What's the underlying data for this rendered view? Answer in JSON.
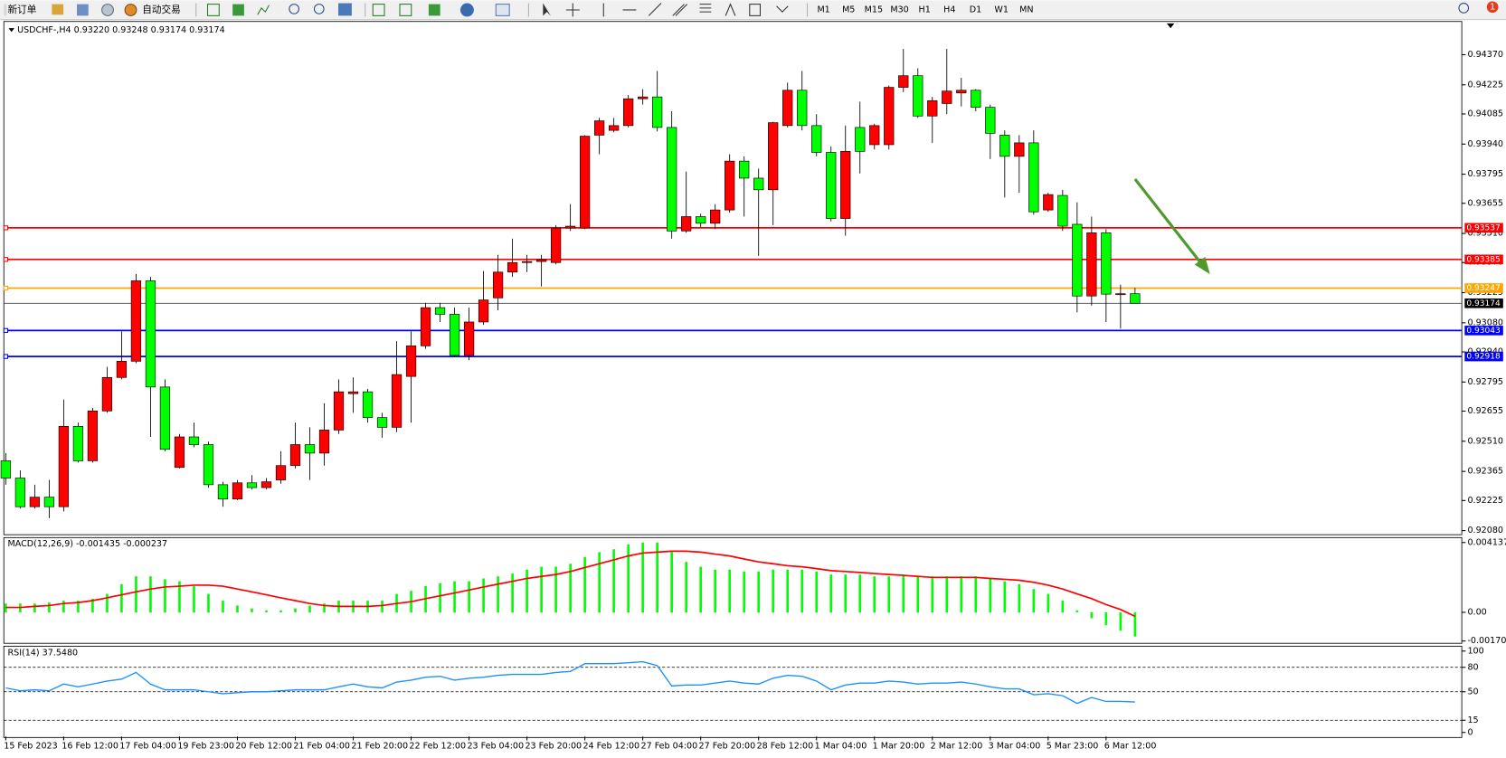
{
  "toolbar": {
    "new_order": "新订单",
    "auto_trading": "自动交易",
    "timeframes": [
      "M1",
      "M5",
      "M15",
      "M30",
      "H1",
      "H4",
      "D1",
      "W1",
      "MN"
    ],
    "notifications": 1
  },
  "chart_data": [
    {
      "type": "candlestick",
      "title": "USDCHF-,H4 0.93220 0.93248 0.93174 0.93174",
      "categories": [
        "15 Feb 2023",
        null,
        null,
        null,
        "16 Feb 12:00",
        null,
        null,
        null,
        "17 Feb 04:00",
        null,
        null,
        null,
        "19 Feb 23:00",
        null,
        null,
        null,
        "20 Feb 12:00",
        null,
        null,
        null,
        "21 Feb 04:00",
        null,
        null,
        null,
        "21 Feb 20:00",
        null,
        null,
        null,
        "22 Feb 12:00",
        null,
        null,
        null,
        "23 Feb 04:00",
        null,
        null,
        null,
        "23 Feb 20:00",
        null,
        null,
        null,
        "24 Feb 12:00",
        null,
        null,
        null,
        "27 Feb 04:00",
        null,
        null,
        null,
        "27 Feb 20:00",
        null,
        null,
        null,
        "28 Feb 12:00",
        null,
        null,
        null,
        "1 Mar 04:00",
        null,
        null,
        null,
        "1 Mar 20:00",
        null,
        null,
        null,
        "2 Mar 12:00",
        null,
        null,
        null,
        "3 Mar 04:00",
        null,
        null,
        null,
        "5 Mar 23:00",
        null,
        null,
        null,
        "6 Mar 12:00",
        null,
        null
      ],
      "open": [
        0.92416,
        0.92333,
        0.92195,
        0.92241,
        0.92195,
        0.92582,
        0.92416,
        0.92656,
        0.92817,
        0.92895,
        0.93282,
        0.92771,
        0.92384,
        0.92531,
        0.92494,
        0.92301,
        0.92232,
        0.9231,
        0.92287,
        0.92324,
        0.92393,
        0.92494,
        0.92453,
        0.92564,
        0.92739,
        0.92748,
        0.92624,
        0.92577,
        0.92822,
        0.92969,
        0.93153,
        0.93121,
        0.92923,
        0.93084,
        0.932,
        0.93324,
        0.9337,
        0.93375,
        0.9337,
        0.93536,
        0.93536,
        0.93983,
        0.94006,
        0.94029,
        0.94158,
        0.94167,
        0.9402,
        0.93522,
        0.93591,
        0.93559,
        0.93623,
        0.93858,
        0.93776,
        0.9372,
        0.94029,
        0.94199,
        0.94029,
        0.939,
        0.93582,
        0.9402,
        0.93937,
        0.93937,
        0.94213,
        0.94269,
        0.94075,
        0.94135,
        0.94186,
        0.94199,
        0.94117,
        0.93983,
        0.93881,
        0.93946,
        0.93623,
        0.93693,
        0.93554,
        0.93209,
        0.93513,
        0.93218,
        0.9322
      ],
      "high": [
        0.92453,
        0.9237,
        0.92301,
        0.92324,
        0.92711,
        0.926,
        0.9267,
        0.92868,
        0.93038,
        0.93315,
        0.93301,
        0.92808,
        0.92545,
        0.926,
        0.92508,
        0.92315,
        0.92324,
        0.92347,
        0.92333,
        0.92462,
        0.926,
        0.92577,
        0.92693,
        0.92808,
        0.92817,
        0.92762,
        0.92647,
        0.92992,
        0.93038,
        0.93176,
        0.93176,
        0.93153,
        0.93153,
        0.93329,
        0.93407,
        0.93485,
        0.93407,
        0.93407,
        0.9355,
        0.93651,
        0.93983,
        0.94066,
        0.94066,
        0.94176,
        0.94204,
        0.94292,
        0.94098,
        0.93808,
        0.93605,
        0.93651,
        0.93891,
        0.93881,
        0.93822,
        0.94047,
        0.94236,
        0.94292,
        0.94084,
        0.93928,
        0.94029,
        0.94144,
        0.94038,
        0.94222,
        0.94398,
        0.94305,
        0.94167,
        0.94398,
        0.94259,
        0.94204,
        0.9413,
        0.94006,
        0.93983,
        0.94006,
        0.93706,
        0.9372,
        0.9366,
        0.93591,
        0.93531,
        0.93264,
        0.93248
      ],
      "low": [
        0.92301,
        0.92186,
        0.92186,
        0.9214,
        0.92172,
        0.92407,
        0.92407,
        0.92647,
        0.92808,
        0.92886,
        0.92531,
        0.92462,
        0.92379,
        0.92481,
        0.92287,
        0.92195,
        0.92227,
        0.92278,
        0.92278,
        0.92306,
        0.92379,
        0.92324,
        0.92393,
        0.92545,
        0.92647,
        0.926,
        0.92527,
        0.92554,
        0.926,
        0.92955,
        0.93084,
        0.92914,
        0.929,
        0.9307,
        0.9314,
        0.93301,
        0.93324,
        0.93255,
        0.93361,
        0.93522,
        0.93531,
        0.93891,
        0.93997,
        0.9402,
        0.9413,
        0.94001,
        0.93485,
        0.93513,
        0.9354,
        0.93531,
        0.9361,
        0.93591,
        0.93402,
        0.9355,
        0.9402,
        0.94006,
        0.93881,
        0.93568,
        0.93499,
        0.93799,
        0.93914,
        0.93914,
        0.9419,
        0.94066,
        0.93946,
        0.94084,
        0.94121,
        0.94098,
        0.93868,
        0.93683,
        0.93706,
        0.936,
        0.93614,
        0.93522,
        0.9313,
        0.93163,
        0.93084,
        0.93052,
        0.93174
      ],
      "close": [
        0.92333,
        0.92195,
        0.92241,
        0.92195,
        0.92582,
        0.92416,
        0.92656,
        0.92817,
        0.92895,
        0.93282,
        0.92771,
        0.92471,
        0.92531,
        0.92494,
        0.92301,
        0.92232,
        0.9231,
        0.92287,
        0.92315,
        0.92393,
        0.92494,
        0.92453,
        0.92564,
        0.92748,
        0.92748,
        0.92624,
        0.92577,
        0.92831,
        0.92969,
        0.93153,
        0.93121,
        0.92923,
        0.93084,
        0.9319,
        0.93324,
        0.9337,
        0.93375,
        0.93384,
        0.93536,
        0.93545,
        0.93978,
        0.94052,
        0.94029,
        0.94158,
        0.94167,
        0.9402,
        0.93522,
        0.93591,
        0.93559,
        0.93623,
        0.93858,
        0.93776,
        0.9372,
        0.94043,
        0.94199,
        0.94029,
        0.939,
        0.93582,
        0.93905,
        0.93905,
        0.94029,
        0.94213,
        0.94269,
        0.94075,
        0.94149,
        0.94195,
        0.94199,
        0.94117,
        0.93992,
        0.93881,
        0.93946,
        0.93614,
        0.93697,
        0.93545,
        0.93209,
        0.93513,
        0.93218,
        0.9322,
        0.93174
      ],
      "up_color": "#ff0000",
      "down_color": "#00ff00",
      "levels": [
        {
          "value": 0.93537,
          "color": "#ff0000"
        },
        {
          "value": 0.93385,
          "color": "#ff0000"
        },
        {
          "value": 0.93247,
          "color": "#ffa500"
        },
        {
          "value": 0.93043,
          "color": "#0000ff"
        },
        {
          "value": 0.92918,
          "color": "#0000ff"
        }
      ],
      "current_price": 0.93174,
      "ylim": [
        0.92065,
        0.9453
      ],
      "yticks": [
        {
          "value": 0.9437,
          "label": "0.94370"
        },
        0.94225,
        {
          "value": 0.94085,
          "label": "0.94085"
        },
        {
          "value": 0.9394,
          "label": "0.93940"
        },
        0.93795,
        0.93655,
        {
          "value": 0.9351,
          "label": "0.93510"
        },
        {
          "value": 0.9337,
          "label": "0.93370"
        },
        0.93225,
        {
          "value": 0.9308,
          "label": "0.93080"
        },
        {
          "value": 0.9294,
          "label": "0.92940"
        },
        0.92795,
        0.92655,
        {
          "value": 0.9251,
          "label": "0.92510"
        },
        0.92365,
        0.92225,
        {
          "value": 0.9208,
          "label": "0.92080"
        }
      ]
    },
    {
      "type": "macd",
      "title": "MACD(12,26,9) -0.001435 -0.000237",
      "histogram": [
        0.00052,
        0.00052,
        0.00052,
        0.00058,
        0.00069,
        0.00069,
        0.00081,
        0.00109,
        0.00167,
        0.00213,
        0.00213,
        0.00196,
        0.00184,
        0.00155,
        0.00109,
        0.00069,
        0.0004,
        0.00023,
        0.00012,
        0.00012,
        0.00023,
        0.0004,
        0.00052,
        0.00069,
        0.00069,
        0.00069,
        0.00069,
        0.00109,
        0.00127,
        0.00155,
        0.00173,
        0.00184,
        0.00184,
        0.00201,
        0.00213,
        0.0023,
        0.00253,
        0.0027,
        0.0027,
        0.00288,
        0.00328,
        0.00357,
        0.00374,
        0.00403,
        0.00414,
        0.00414,
        0.00357,
        0.00299,
        0.0027,
        0.00253,
        0.00253,
        0.00242,
        0.00242,
        0.00253,
        0.00253,
        0.00253,
        0.00242,
        0.00224,
        0.00224,
        0.00224,
        0.00213,
        0.00213,
        0.00224,
        0.00213,
        0.00213,
        0.00213,
        0.00213,
        0.00213,
        0.00201,
        0.00184,
        0.00167,
        0.00138,
        0.00109,
        0.00069,
        0.00012,
        -0.00035,
        -0.00075,
        -0.00109,
        -0.001435
      ],
      "histogram_color": "#00ff00",
      "signal": [
        0.00029,
        0.00029,
        0.00035,
        0.0004,
        0.00052,
        0.00058,
        0.00069,
        0.00086,
        0.00104,
        0.00121,
        0.00138,
        0.0015,
        0.00155,
        0.00161,
        0.00161,
        0.00155,
        0.00138,
        0.00121,
        0.00104,
        0.00086,
        0.00069,
        0.00052,
        0.0004,
        0.00035,
        0.00035,
        0.00035,
        0.0004,
        0.00052,
        0.00063,
        0.00081,
        0.00098,
        0.00115,
        0.00132,
        0.0015,
        0.00167,
        0.00184,
        0.00201,
        0.00213,
        0.00224,
        0.00242,
        0.00265,
        0.00288,
        0.00311,
        0.00334,
        0.00351,
        0.00357,
        0.00362,
        0.00362,
        0.00357,
        0.00345,
        0.00334,
        0.00316,
        0.00299,
        0.00288,
        0.00276,
        0.0027,
        0.00259,
        0.00247,
        0.00242,
        0.00236,
        0.0023,
        0.00224,
        0.00219,
        0.00213,
        0.00207,
        0.00207,
        0.00207,
        0.00207,
        0.00201,
        0.00196,
        0.0019,
        0.00178,
        0.00161,
        0.00138,
        0.00109,
        0.00081,
        0.00046,
        0.00017,
        -0.000237
      ],
      "signal_color": "#ff0000",
      "ylim": [
        -0.00178,
        0.00443
      ],
      "yticks": [
        0.004137,
        {
          "value": 0,
          "label": "0.00"
        },
        -0.001701
      ]
    },
    {
      "type": "line",
      "title": "RSI(14) 37.5480",
      "values": [
        54.8,
        51.2,
        52.4,
        51.2,
        59.5,
        56.0,
        59.5,
        63.1,
        65.5,
        73.8,
        59.5,
        52.4,
        52.4,
        52.4,
        50.0,
        47.6,
        48.8,
        50.0,
        50.0,
        51.2,
        52.4,
        52.4,
        52.4,
        56.0,
        59.5,
        56.0,
        54.8,
        61.9,
        64.3,
        67.9,
        69.0,
        64.3,
        66.7,
        67.9,
        70.2,
        71.4,
        71.4,
        71.4,
        73.8,
        75.0,
        84.5,
        84.5,
        84.5,
        85.7,
        86.9,
        82.1,
        57.1,
        58.3,
        58.3,
        60.7,
        63.1,
        60.7,
        59.5,
        66.7,
        70.2,
        69.0,
        63.1,
        52.4,
        58.3,
        60.7,
        60.7,
        63.1,
        61.9,
        59.5,
        60.7,
        60.7,
        61.9,
        59.5,
        56.0,
        53.6,
        53.6,
        46.4,
        47.6,
        45.2,
        35.7,
        42.9,
        38.1,
        38.1,
        37.548
      ],
      "color": "#1e90ff",
      "levels": [
        80,
        50,
        15
      ],
      "ylim": [
        -5,
        106
      ],
      "yticks": [
        100,
        80,
        50,
        15,
        0
      ]
    }
  ]
}
